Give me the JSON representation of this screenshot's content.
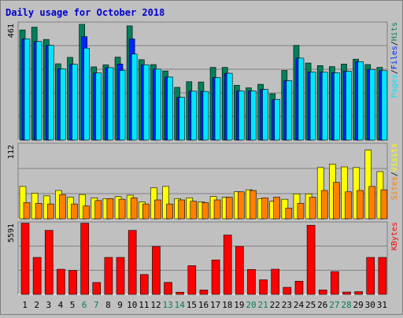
{
  "chart_data": [
    {
      "type": "bar",
      "title": "Daily usage for October 2018",
      "categories": [
        "1",
        "2",
        "3",
        "4",
        "5",
        "6",
        "7",
        "8",
        "9",
        "10",
        "11",
        "12",
        "13",
        "14",
        "15",
        "16",
        "17",
        "18",
        "19",
        "20",
        "21",
        "22",
        "23",
        "24",
        "25",
        "26",
        "27",
        "28",
        "29",
        "30",
        "31"
      ],
      "weekend_days": [
        "6",
        "7",
        "13",
        "14",
        "20",
        "21",
        "27",
        "28"
      ],
      "ymax_label": "461",
      "ylim": [
        0,
        461
      ],
      "axis_label_parts": [
        "Pages",
        "/",
        "Files",
        "/",
        "Hits"
      ],
      "series": [
        {
          "name": "Hits",
          "color": "#00805c",
          "values": [
            430,
            441,
            393,
            298,
            323,
            452,
            286,
            294,
            324,
            446,
            314,
            295,
            270,
            206,
            228,
            227,
            284,
            284,
            214,
            204,
            218,
            181,
            272,
            370,
            301,
            291,
            287,
            297,
            316,
            295,
            284
          ]
        },
        {
          "name": "Files",
          "color": "#0024ff",
          "values": [
            395,
            385,
            370,
            278,
            296,
            404,
            262,
            283,
            297,
            395,
            294,
            277,
            246,
            167,
            191,
            190,
            244,
            261,
            192,
            192,
            198,
            159,
            232,
            320,
            266,
            265,
            263,
            269,
            306,
            276,
            271
          ]
        },
        {
          "name": "Pages",
          "color": "#00e6ff",
          "values": [
            395,
            385,
            370,
            278,
            296,
            359,
            262,
            283,
            272,
            336,
            294,
            277,
            246,
            167,
            191,
            190,
            244,
            261,
            192,
            192,
            198,
            159,
            232,
            320,
            266,
            265,
            263,
            269,
            306,
            276,
            271
          ]
        }
      ]
    },
    {
      "type": "bar",
      "ymax_label": "112",
      "ylim": [
        0,
        112
      ],
      "axis_label_parts": [
        "Sites",
        "/",
        "Visits"
      ],
      "series": [
        {
          "name": "Visits",
          "color": "#ffff00",
          "values": [
            48,
            38,
            34,
            42,
            32,
            36,
            31,
            30,
            33,
            35,
            25,
            46,
            48,
            30,
            31,
            25,
            33,
            32,
            40,
            43,
            30,
            26,
            29,
            37,
            37,
            76,
            81,
            77,
            76,
            102,
            70
          ]
        },
        {
          "name": "Sites",
          "color": "#ff8000",
          "values": [
            24,
            23,
            22,
            36,
            22,
            19,
            27,
            30,
            29,
            31,
            22,
            28,
            22,
            28,
            26,
            24,
            28,
            32,
            40,
            42,
            31,
            32,
            16,
            23,
            32,
            42,
            54,
            40,
            42,
            48,
            43
          ]
        }
      ]
    },
    {
      "type": "bar",
      "ymax_label": "5591",
      "ylim": [
        0,
        5591
      ],
      "axis_label_parts": [
        "KBytes"
      ],
      "series": [
        {
          "name": "KBytes",
          "color": "#ff0000",
          "values": [
            5495,
            2854,
            4944,
            1942,
            1845,
            5495,
            920,
            2854,
            2854,
            4944,
            1533,
            3701,
            926,
            168,
            2215,
            339,
            2660,
            4582,
            3701,
            1924,
            1125,
            1942,
            545,
            1018,
            5337,
            340,
            1759,
            180,
            209,
            2854,
            2854
          ]
        }
      ]
    }
  ]
}
